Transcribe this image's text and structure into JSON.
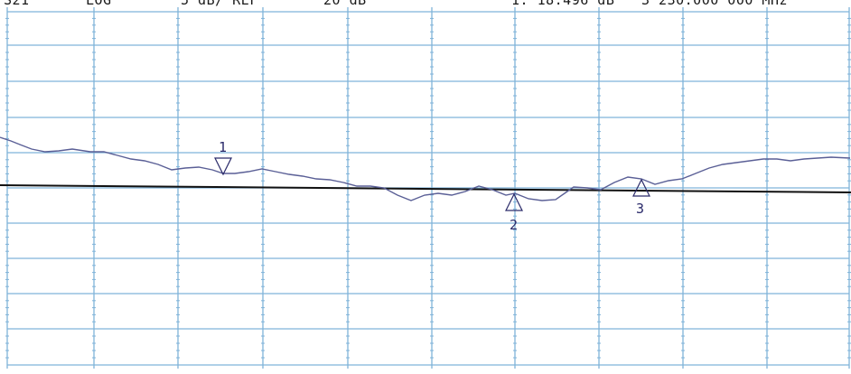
{
  "header": {
    "trace": "S21",
    "format": "LOG",
    "scale": "5 dB/ REF",
    "ref_value": "20 dB",
    "marker_readout": "1: 18.496 dB",
    "marker_freq": "3 230.000 000 MHz"
  },
  "display": {
    "grid_color": "#7fb3d9",
    "trace_color": "#5a5f96",
    "reference_line_color": "#111111",
    "background": "#ffffff"
  },
  "markers": [
    {
      "label": "1",
      "icon": "marker-down-triangle-icon"
    },
    {
      "label": "2",
      "icon": "marker-up-triangle-icon"
    },
    {
      "label": "3",
      "icon": "marker-up-triangle-icon"
    }
  ]
}
